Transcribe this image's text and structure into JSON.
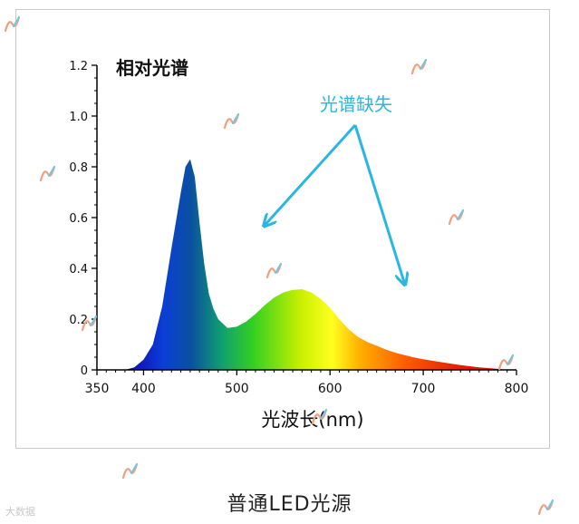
{
  "chart_data": {
    "type": "area",
    "title": "相对光谱",
    "xlabel": "光波长(nm)",
    "ylabel": "",
    "xlim": [
      350,
      800
    ],
    "ylim": [
      0,
      1.2
    ],
    "x_ticks": [
      350,
      400,
      500,
      600,
      700,
      800
    ],
    "y_ticks": [
      0,
      0.2,
      0.4,
      0.6,
      0.8,
      1.0,
      1.2
    ],
    "y_tick_labels": [
      "0",
      "0.2",
      "0.4",
      "0.6",
      "0.8",
      "1.0",
      "1.2"
    ],
    "grid": false,
    "series": [
      {
        "x": [
          380,
          390,
          400,
          410,
          420,
          430,
          440,
          445,
          450,
          455,
          460,
          465,
          470,
          475,
          480,
          490,
          500,
          510,
          520,
          530,
          540,
          550,
          560,
          570,
          580,
          590,
          600,
          610,
          620,
          630,
          640,
          650,
          660,
          670,
          680,
          690,
          700,
          720,
          740,
          760,
          780,
          790
        ],
        "y": [
          0.0,
          0.01,
          0.04,
          0.1,
          0.25,
          0.48,
          0.7,
          0.8,
          0.83,
          0.76,
          0.58,
          0.42,
          0.3,
          0.24,
          0.2,
          0.165,
          0.17,
          0.19,
          0.22,
          0.255,
          0.285,
          0.305,
          0.315,
          0.318,
          0.305,
          0.28,
          0.245,
          0.2,
          0.16,
          0.13,
          0.11,
          0.095,
          0.08,
          0.068,
          0.058,
          0.049,
          0.042,
          0.03,
          0.019,
          0.01,
          0.004,
          0.0
        ]
      }
    ],
    "annotation": {
      "text": "光谱缺失",
      "color": "#29b6e3",
      "arrow_targets": [
        [
          530,
          0.57
        ],
        [
          680,
          0.34
        ]
      ]
    }
  },
  "caption": "普通LED光源",
  "watermark": {
    "text": "大数据",
    "icon": "watermark-logo"
  },
  "colors": {
    "axis": "#000000",
    "annotation": "#29b6e3"
  }
}
